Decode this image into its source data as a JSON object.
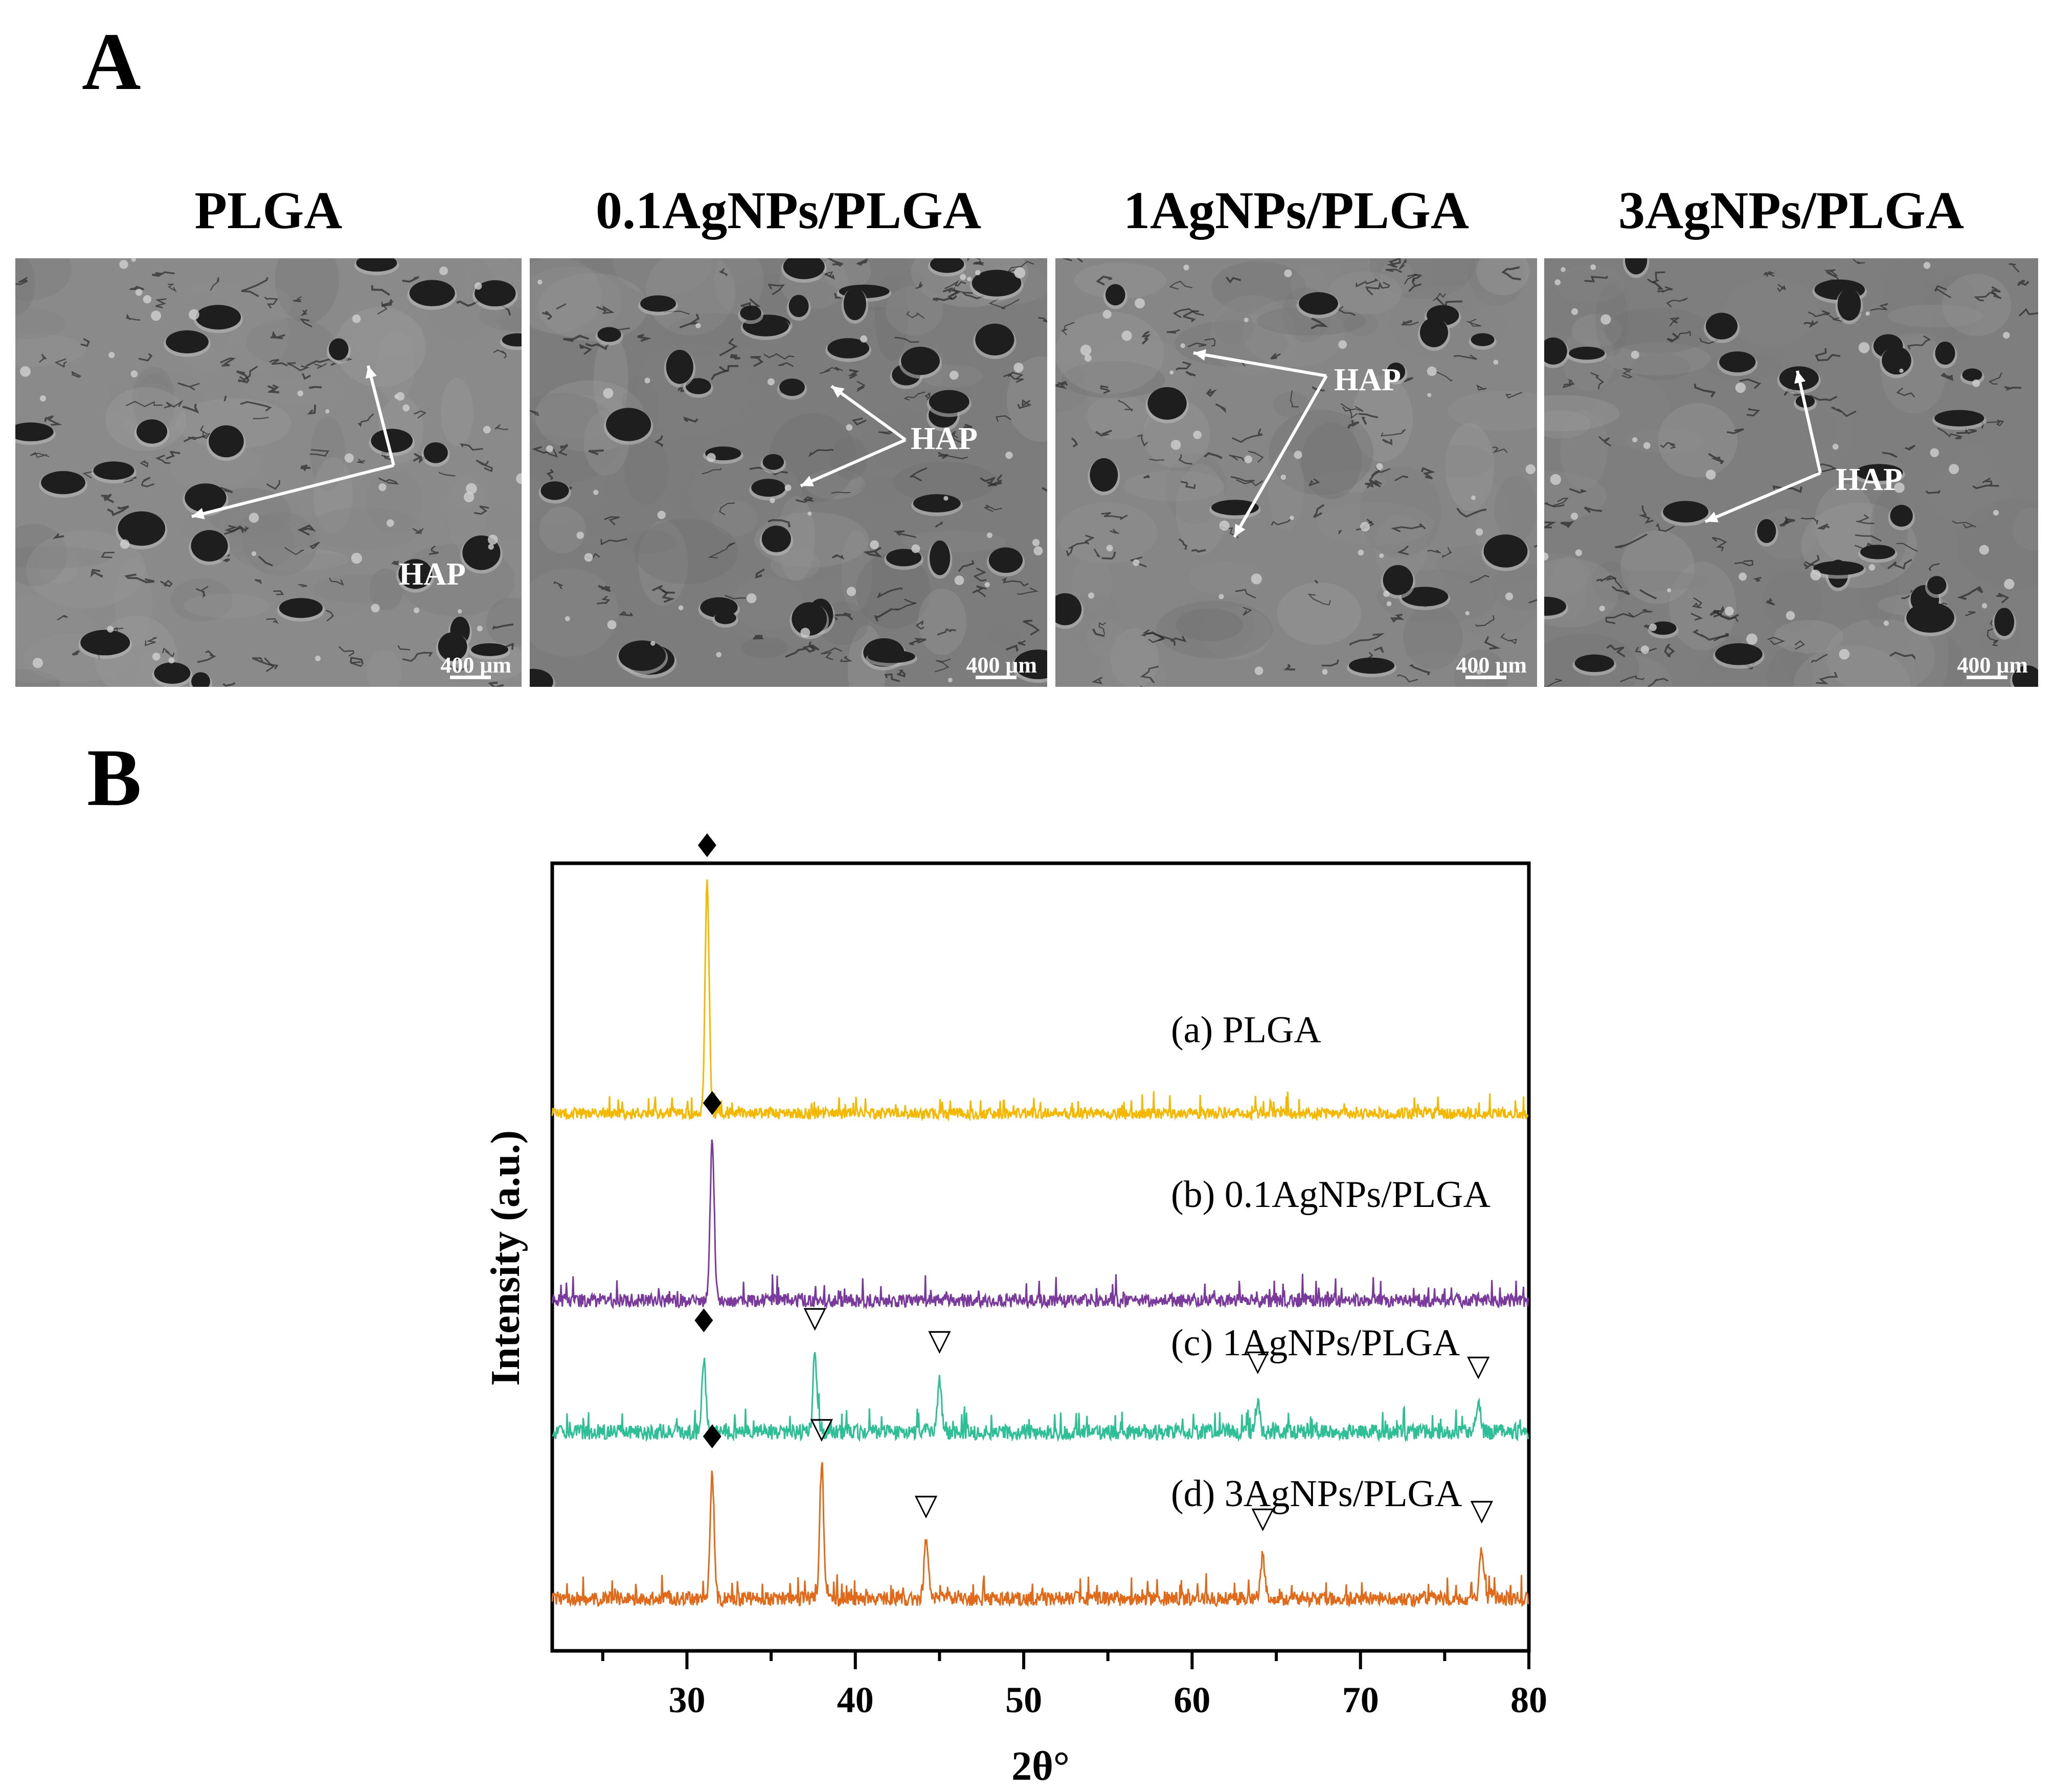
{
  "panel_a": {
    "letter": "A",
    "images": [
      {
        "title": "PLGA",
        "annotation": "HAP",
        "scale_bar": "400 μm"
      },
      {
        "title": "0.1AgNPs/PLGA",
        "annotation": "HAP",
        "scale_bar": "400 μm"
      },
      {
        "title": "1AgNPs/PLGA",
        "annotation": "HAP",
        "scale_bar": "400 μm"
      },
      {
        "title": "3AgNPs/PLGA",
        "annotation": "HAP",
        "scale_bar": "400 μm"
      }
    ]
  },
  "panel_b": {
    "letter": "B"
  },
  "chart_data": {
    "type": "line",
    "title": "",
    "xlabel": "2θ°",
    "ylabel": "Intensity (a.u.)",
    "xlim": [
      22,
      80
    ],
    "xticks": [
      30,
      40,
      50,
      60,
      70,
      80
    ],
    "x_tick_labels": [
      "30",
      "40",
      "50",
      "60",
      "70",
      "80"
    ],
    "y_ticks": "none",
    "markers": {
      "diamond": "♦",
      "triangle": "▽"
    },
    "series": [
      {
        "name": "(a) PLGA",
        "color": "#f5b800",
        "peaks": [
          {
            "x": 31.2,
            "marker": "diamond"
          }
        ]
      },
      {
        "name": "(b) 0.1AgNPs/PLGA",
        "color": "#7a3a9c",
        "peaks": [
          {
            "x": 31.5,
            "marker": "diamond"
          }
        ]
      },
      {
        "name": "(c) 1AgNPs/PLGA",
        "color": "#2fbf96",
        "peaks": [
          {
            "x": 31.0,
            "marker": "diamond"
          },
          {
            "x": 37.6,
            "marker": "triangle"
          },
          {
            "x": 45.0,
            "marker": "triangle"
          },
          {
            "x": 63.9,
            "marker": "triangle"
          },
          {
            "x": 77.0,
            "marker": "triangle"
          }
        ]
      },
      {
        "name": "(d) 3AgNPs/PLGA",
        "color": "#e06a1a",
        "peaks": [
          {
            "x": 31.5,
            "marker": "diamond"
          },
          {
            "x": 38.0,
            "marker": "triangle"
          },
          {
            "x": 44.2,
            "marker": "triangle"
          },
          {
            "x": 64.2,
            "marker": "triangle"
          },
          {
            "x": 77.2,
            "marker": "triangle"
          }
        ]
      }
    ]
  }
}
